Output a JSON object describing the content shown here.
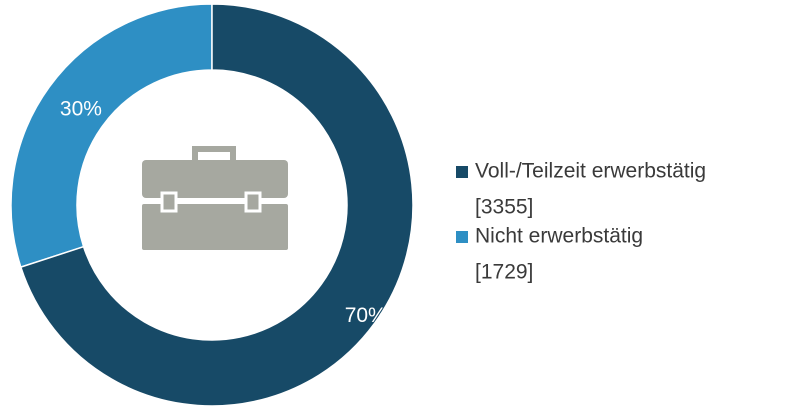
{
  "chart_data": {
    "type": "donut",
    "categories": [
      "Voll-/Teilzeit erwerbstätig",
      "Nicht erwerbstätig"
    ],
    "counts": [
      "[3355]",
      "[1729]"
    ],
    "values": [
      70,
      30
    ],
    "value_labels": [
      "70%",
      "30%"
    ],
    "colors": [
      "#174a67",
      "#2e8fc4"
    ]
  }
}
